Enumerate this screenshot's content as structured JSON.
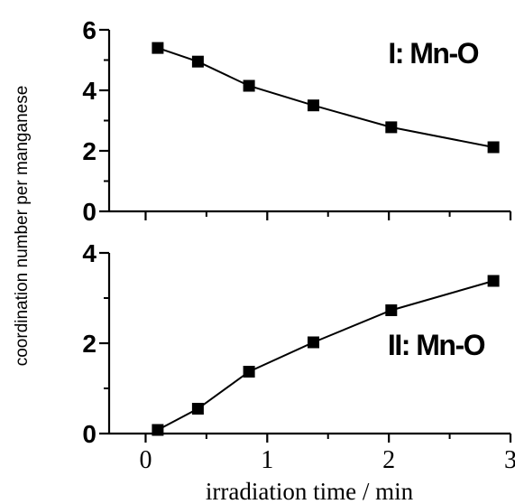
{
  "chart_data": {
    "type": "line",
    "xlabel": "irradiation time / min",
    "ylabel": "coordination number per manganese",
    "x_ticks": [
      "0",
      "1",
      "2",
      "3"
    ],
    "xlim": [
      -0.3,
      3.0
    ],
    "grid": false,
    "panels": [
      {
        "label": "I: Mn-O",
        "ylim": [
          0,
          6
        ],
        "y_ticks": [
          "0",
          "2",
          "4",
          "6"
        ],
        "series": [
          {
            "x": [
              0.1,
              0.43,
              0.85,
              1.38,
              2.02,
              2.86
            ],
            "y": [
              5.4,
              4.95,
              4.15,
              3.5,
              2.78,
              2.12
            ]
          }
        ]
      },
      {
        "label": "II: Mn-O",
        "ylim": [
          0,
          4
        ],
        "y_ticks": [
          "0",
          "2",
          "4"
        ],
        "series": [
          {
            "x": [
              0.1,
              0.43,
              0.85,
              1.38,
              2.02,
              2.86
            ],
            "y": [
              0.08,
              0.55,
              1.37,
              2.02,
              2.73,
              3.38
            ]
          }
        ]
      }
    ]
  }
}
